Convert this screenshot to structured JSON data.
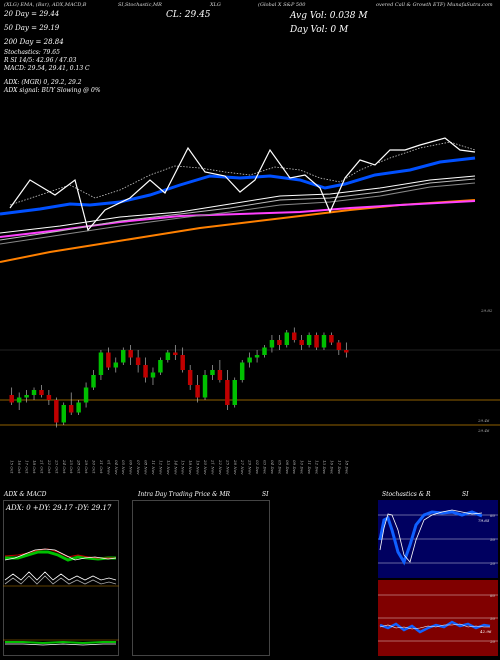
{
  "header": {
    "left": "(XLG) EMA, (Bar), ADX,MACD,B",
    "mid": "SI,Stochastic,MR",
    "right1": "(Global X S&P 500",
    "right2": "overed Call & Growth ETF) MunafaSutra.com",
    "symbol": "XLG"
  },
  "ma_labels": {
    "ma20": "20 Day = 29.44",
    "ma50": "50 Day = 29.19",
    "ma200": "200 Day = 28.84"
  },
  "close_label": "CL: 29.45",
  "avg_vol": "Avg Vol: 0.038  M",
  "day_vol": "Day Vol: 0   M",
  "indicators": {
    "stoch": "Stochastics: 79.65",
    "rsi": "R                SI 14/5: 42.96 / 47.03",
    "macd": "MACD: 29.54, 29.41, 0.13 C",
    "adx": "ADX:                         (MGR) 0, 29.2, 29.2",
    "adx_signal": "ADX  signal:                          BUY Slowing @ 0%"
  },
  "price_axis": {
    "top": "29.82",
    "mid_hi": "29.46",
    "mid_lo": "29.46"
  },
  "panels": {
    "adx_title": "ADX  & MACD",
    "adx_values": "ADX: 0   +DY: 29.17  -DY: 29.17",
    "intra_title": "Intra  Day Trading Price  & MR",
    "intra_si": "SI",
    "stoch_title": "Stochastics & R",
    "stoch_si": "SI",
    "stoch_ticks": [
      "80",
      "50",
      "20"
    ],
    "stoch_value": "79.65",
    "rsi_ticks": [
      "80",
      "50",
      "20"
    ],
    "rsi_value": "42.96"
  },
  "colors": {
    "up": "#00c000",
    "down": "#c00000",
    "ema_blue": "#0050ff",
    "ema_orange": "#ff8000",
    "ema_magenta": "#ff40ff"
  },
  "chart_data": {
    "type": "candlestick",
    "categories": [
      "15 Oct",
      "16 Oct",
      "17 Oct",
      "18 Oct",
      "21 Oct",
      "22 Oct",
      "23 Oct",
      "24 Oct",
      "25 Oct",
      "28 Oct",
      "29 Oct",
      "30 Oct",
      "31 Oct",
      "01 Nov",
      "04 Nov",
      "05 Nov",
      "06 Nov",
      "07 Nov",
      "08 Nov",
      "11 Nov",
      "12 Nov",
      "13 Nov",
      "14 Nov",
      "15 Nov",
      "18 Nov",
      "19 Nov",
      "20 Nov",
      "21 Nov",
      "22 Nov",
      "25 Nov",
      "26 Nov",
      "27 Nov",
      "29 Nov",
      "02 Dec",
      "03 Dec",
      "04 Dec",
      "05 Dec",
      "06 Dec",
      "09 Dec",
      "10 Dec",
      "11 Dec",
      "12 Dec",
      "13 Dec",
      "16 Dec",
      "17 Dec",
      "18 Dec"
    ],
    "series": [
      {
        "type": "candle",
        "ohlc": [
          [
            29.28,
            29.31,
            29.24,
            29.25
          ],
          [
            29.25,
            29.29,
            29.22,
            29.27
          ],
          [
            29.27,
            29.3,
            29.25,
            29.28
          ],
          [
            29.28,
            29.31,
            29.26,
            29.3
          ],
          [
            29.3,
            29.32,
            29.27,
            29.28
          ],
          [
            29.28,
            29.3,
            29.24,
            29.26
          ],
          [
            29.26,
            29.27,
            29.15,
            29.17
          ],
          [
            29.17,
            29.25,
            29.16,
            29.24
          ],
          [
            29.24,
            29.29,
            29.2,
            29.21
          ],
          [
            29.21,
            29.26,
            29.2,
            29.25
          ],
          [
            29.25,
            29.33,
            29.23,
            29.31
          ],
          [
            29.31,
            29.38,
            29.3,
            29.36
          ],
          [
            29.36,
            29.46,
            29.34,
            29.45
          ],
          [
            29.45,
            29.47,
            29.38,
            29.39
          ],
          [
            29.39,
            29.43,
            29.37,
            29.41
          ],
          [
            29.41,
            29.47,
            29.4,
            29.46
          ],
          [
            29.46,
            29.48,
            29.4,
            29.43
          ],
          [
            29.43,
            29.46,
            29.37,
            29.4
          ],
          [
            29.4,
            29.43,
            29.33,
            29.35
          ],
          [
            29.35,
            29.39,
            29.32,
            29.37
          ],
          [
            29.37,
            29.43,
            29.36,
            29.42
          ],
          [
            29.42,
            29.46,
            29.41,
            29.45
          ],
          [
            29.45,
            29.48,
            29.42,
            29.44
          ],
          [
            29.44,
            29.47,
            29.37,
            29.38
          ],
          [
            29.38,
            29.4,
            29.3,
            29.32
          ],
          [
            29.32,
            29.36,
            29.25,
            29.27
          ],
          [
            29.27,
            29.38,
            29.26,
            29.36
          ],
          [
            29.36,
            29.4,
            29.34,
            29.38
          ],
          [
            29.38,
            29.42,
            29.33,
            29.34
          ],
          [
            29.34,
            29.38,
            29.22,
            29.24
          ],
          [
            29.24,
            29.35,
            29.23,
            29.34
          ],
          [
            29.34,
            29.42,
            29.33,
            29.41
          ],
          [
            29.41,
            29.45,
            29.39,
            29.43
          ],
          [
            29.43,
            29.46,
            29.41,
            29.44
          ],
          [
            29.44,
            29.48,
            29.43,
            29.47
          ],
          [
            29.47,
            29.52,
            29.45,
            29.5
          ],
          [
            29.5,
            29.52,
            29.46,
            29.48
          ],
          [
            29.48,
            29.54,
            29.47,
            29.53
          ],
          [
            29.53,
            29.55,
            29.49,
            29.5
          ],
          [
            29.5,
            29.52,
            29.46,
            29.48
          ],
          [
            29.48,
            29.53,
            29.47,
            29.52
          ],
          [
            29.52,
            29.53,
            29.46,
            29.47
          ],
          [
            29.47,
            29.53,
            29.46,
            29.52
          ],
          [
            29.52,
            29.53,
            29.48,
            29.49
          ],
          [
            29.49,
            29.5,
            29.44,
            29.46
          ],
          [
            29.46,
            29.49,
            29.43,
            29.45
          ]
        ]
      }
    ],
    "ylim": [
      29.1,
      29.62
    ],
    "hlines": [
      29.46,
      29.26,
      29.16
    ]
  }
}
